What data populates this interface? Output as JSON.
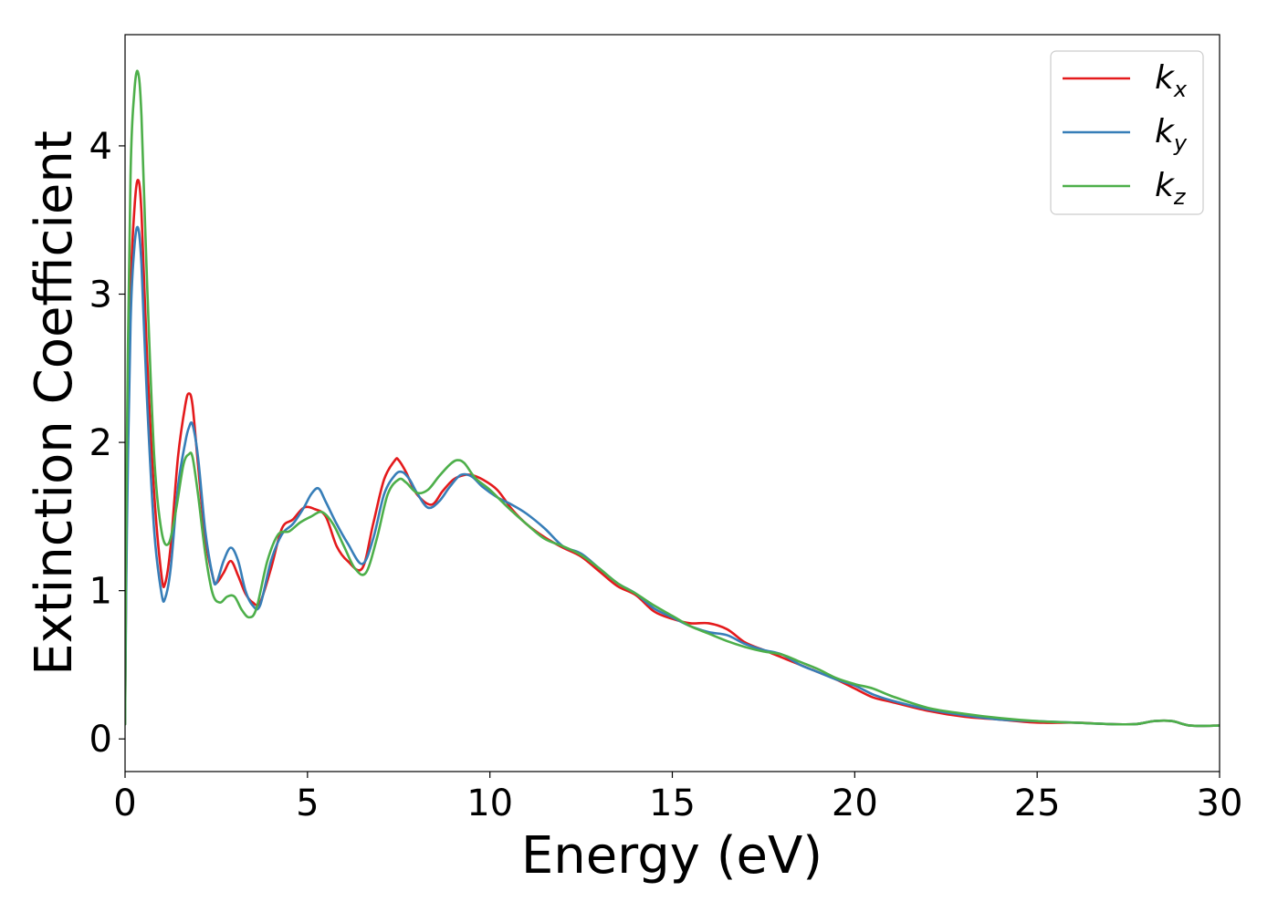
{
  "chart_data": {
    "type": "line",
    "xlabel": "Energy (eV)",
    "ylabel": "Extinction Coefficient",
    "xlim": [
      0,
      30
    ],
    "ylim": [
      -0.22,
      4.75
    ],
    "xticks": [
      0,
      5,
      10,
      15,
      20,
      25,
      30
    ],
    "xtick_labels": [
      "0",
      "5",
      "10",
      "15",
      "20",
      "25",
      "30"
    ],
    "yticks": [
      0,
      1,
      2,
      3,
      4
    ],
    "ytick_labels": [
      "0",
      "1",
      "2",
      "3",
      "4"
    ],
    "grid": false,
    "legend_position": "top-right",
    "series": [
      {
        "name": "k",
        "subscript": "x",
        "color": "#e41a1c",
        "x": [
          0,
          0.05,
          0.15,
          0.25,
          0.35,
          0.45,
          0.6,
          0.8,
          1.0,
          1.1,
          1.25,
          1.45,
          1.65,
          1.75,
          1.85,
          2.0,
          2.2,
          2.4,
          2.5,
          2.7,
          2.9,
          3.1,
          3.3,
          3.5,
          3.7,
          4.0,
          4.3,
          4.6,
          4.9,
          5.2,
          5.5,
          5.8,
          6.1,
          6.5,
          6.8,
          7.1,
          7.4,
          7.5,
          7.7,
          8.0,
          8.4,
          8.7,
          9.0,
          9.3,
          9.5,
          9.8,
          10.2,
          10.6,
          11.0,
          11.5,
          12.0,
          12.5,
          13.0,
          13.5,
          14.0,
          14.5,
          15.0,
          15.5,
          16.0,
          16.5,
          17.0,
          17.5,
          18.0,
          18.5,
          19.0,
          19.5,
          20.0,
          20.5,
          21.0,
          22.0,
          23.0,
          24.0,
          25.0,
          26.0,
          27.0,
          27.7,
          28.2,
          28.7,
          29.2,
          30.0
        ],
        "y": [
          0.1,
          1.6,
          3.0,
          3.55,
          3.77,
          3.55,
          2.6,
          1.65,
          1.1,
          1.05,
          1.3,
          1.9,
          2.25,
          2.33,
          2.25,
          1.85,
          1.35,
          1.1,
          1.05,
          1.12,
          1.2,
          1.1,
          0.98,
          0.92,
          0.92,
          1.15,
          1.42,
          1.48,
          1.56,
          1.55,
          1.5,
          1.3,
          1.2,
          1.15,
          1.45,
          1.75,
          1.88,
          1.88,
          1.8,
          1.65,
          1.58,
          1.67,
          1.75,
          1.78,
          1.78,
          1.75,
          1.68,
          1.55,
          1.45,
          1.36,
          1.29,
          1.23,
          1.13,
          1.03,
          0.97,
          0.86,
          0.81,
          0.78,
          0.78,
          0.74,
          0.65,
          0.6,
          0.55,
          0.5,
          0.45,
          0.4,
          0.34,
          0.28,
          0.25,
          0.19,
          0.15,
          0.13,
          0.11,
          0.11,
          0.1,
          0.1,
          0.12,
          0.12,
          0.09,
          0.09
        ]
      },
      {
        "name": "k",
        "subscript": "y",
        "color": "#377eb8",
        "x": [
          0,
          0.05,
          0.15,
          0.25,
          0.35,
          0.45,
          0.6,
          0.8,
          1.0,
          1.1,
          1.25,
          1.45,
          1.65,
          1.75,
          1.85,
          2.0,
          2.2,
          2.4,
          2.5,
          2.7,
          2.9,
          3.1,
          3.3,
          3.5,
          3.7,
          4.0,
          4.3,
          4.6,
          4.9,
          5.1,
          5.3,
          5.5,
          5.8,
          6.1,
          6.5,
          6.8,
          7.1,
          7.4,
          7.6,
          7.8,
          8.0,
          8.3,
          8.6,
          8.9,
          9.2,
          9.5,
          9.8,
          10.2,
          10.6,
          11.0,
          11.5,
          12.0,
          12.5,
          13.0,
          13.5,
          14.0,
          14.5,
          15.0,
          15.5,
          16.0,
          16.5,
          17.0,
          17.5,
          18.0,
          18.5,
          19.0,
          19.5,
          20.0,
          20.5,
          21.0,
          22.0,
          23.0,
          24.0,
          25.0,
          26.0,
          27.0,
          27.7,
          28.2,
          28.7,
          29.2,
          30.0
        ],
        "y": [
          0.1,
          1.4,
          2.8,
          3.3,
          3.45,
          3.2,
          2.3,
          1.4,
          0.98,
          0.95,
          1.15,
          1.7,
          2.0,
          2.1,
          2.12,
          1.9,
          1.4,
          1.1,
          1.05,
          1.2,
          1.29,
          1.2,
          1.0,
          0.9,
          0.9,
          1.2,
          1.38,
          1.45,
          1.56,
          1.65,
          1.69,
          1.6,
          1.45,
          1.32,
          1.18,
          1.35,
          1.65,
          1.78,
          1.8,
          1.75,
          1.66,
          1.56,
          1.6,
          1.7,
          1.78,
          1.77,
          1.7,
          1.63,
          1.58,
          1.52,
          1.42,
          1.3,
          1.25,
          1.15,
          1.05,
          0.98,
          0.88,
          0.82,
          0.76,
          0.72,
          0.7,
          0.64,
          0.6,
          0.57,
          0.5,
          0.45,
          0.4,
          0.36,
          0.3,
          0.26,
          0.2,
          0.16,
          0.13,
          0.12,
          0.11,
          0.1,
          0.1,
          0.12,
          0.12,
          0.09,
          0.09
        ]
      },
      {
        "name": "k",
        "subscript": "z",
        "color": "#4daf4a",
        "x": [
          0,
          0.05,
          0.15,
          0.25,
          0.35,
          0.45,
          0.6,
          0.8,
          1.0,
          1.2,
          1.4,
          1.6,
          1.75,
          1.85,
          2.0,
          2.2,
          2.4,
          2.6,
          2.8,
          3.0,
          3.2,
          3.4,
          3.6,
          3.9,
          4.2,
          4.5,
          4.8,
          5.1,
          5.4,
          5.7,
          6.0,
          6.3,
          6.6,
          6.9,
          7.2,
          7.5,
          7.7,
          8.0,
          8.3,
          8.6,
          8.9,
          9.1,
          9.3,
          9.6,
          10.0,
          10.5,
          11.0,
          11.5,
          12.0,
          12.5,
          13.0,
          13.5,
          14.0,
          14.5,
          15.0,
          15.5,
          16.0,
          16.5,
          17.0,
          17.5,
          18.0,
          18.5,
          19.0,
          19.5,
          20.0,
          20.5,
          21.0,
          22.0,
          23.0,
          24.0,
          25.0,
          26.0,
          27.0,
          27.7,
          28.2,
          28.7,
          29.2,
          30.0
        ],
        "y": [
          0.1,
          2.0,
          3.8,
          4.35,
          4.5,
          4.2,
          3.1,
          1.9,
          1.4,
          1.32,
          1.55,
          1.85,
          1.92,
          1.9,
          1.65,
          1.25,
          0.98,
          0.92,
          0.96,
          0.96,
          0.87,
          0.82,
          0.88,
          1.2,
          1.38,
          1.4,
          1.46,
          1.5,
          1.53,
          1.45,
          1.3,
          1.15,
          1.12,
          1.35,
          1.65,
          1.75,
          1.73,
          1.66,
          1.68,
          1.77,
          1.85,
          1.88,
          1.86,
          1.76,
          1.68,
          1.56,
          1.45,
          1.35,
          1.3,
          1.24,
          1.15,
          1.05,
          0.98,
          0.9,
          0.83,
          0.76,
          0.71,
          0.66,
          0.62,
          0.59,
          0.57,
          0.52,
          0.47,
          0.41,
          0.37,
          0.34,
          0.29,
          0.21,
          0.17,
          0.14,
          0.12,
          0.11,
          0.1,
          0.1,
          0.12,
          0.12,
          0.09,
          0.09
        ]
      }
    ]
  }
}
